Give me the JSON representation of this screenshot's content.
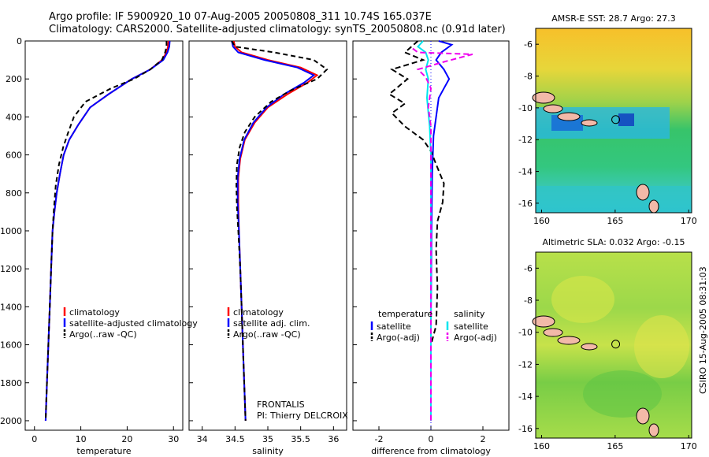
{
  "header": {
    "line1": "Argo profile: IF 5900920_10 07-Aug-2005 20050808_311 10.74S 165.037E",
    "line2": "Climatology: CARS2000. Satellite-adjusted climatology: synTS_20050808.nc (0.91d later)"
  },
  "side_label": "CSIRO 15-Aug-2005 08:31:03",
  "colors": {
    "climatology": "#ff0000",
    "satellite": "#0000ff",
    "argo": "#000000",
    "cyan": "#00e5ee",
    "magenta": "#ee00ee"
  },
  "chart_data": [
    {
      "type": "line",
      "id": "temperature",
      "xlabel": "temperature",
      "xlim": [
        -2,
        32
      ],
      "xticks": [
        0,
        10,
        20,
        30
      ],
      "ylim": [
        2050,
        0
      ],
      "yticks": [
        0,
        200,
        400,
        600,
        800,
        1000,
        1200,
        1400,
        1600,
        1800,
        2000
      ],
      "legend": [
        "climatology",
        "satellite-adjusted climatology",
        "Argo(..raw -QC)"
      ],
      "series": [
        {
          "name": "climatology",
          "color": "red",
          "dash": "",
          "points": [
            [
              28.9,
              0
            ],
            [
              28.8,
              30
            ],
            [
              28.5,
              60
            ],
            [
              27.5,
              100
            ],
            [
              25,
              150
            ],
            [
              21,
              200
            ],
            [
              16,
              280
            ],
            [
              12,
              350
            ],
            [
              9.5,
              440
            ],
            [
              7.5,
              520
            ],
            [
              6.3,
              600
            ],
            [
              5.5,
              700
            ],
            [
              4.8,
              800
            ],
            [
              4.3,
              900
            ],
            [
              3.9,
              1000
            ],
            [
              3.6,
              1200
            ],
            [
              3.3,
              1400
            ],
            [
              3,
              1600
            ],
            [
              2.7,
              1800
            ],
            [
              2.4,
              2000
            ]
          ]
        },
        {
          "name": "satellite-adjusted climatology",
          "color": "blue",
          "dash": "",
          "points": [
            [
              29.2,
              0
            ],
            [
              29.1,
              30
            ],
            [
              28.7,
              60
            ],
            [
              27.8,
              100
            ],
            [
              25,
              150
            ],
            [
              21,
              200
            ],
            [
              16,
              280
            ],
            [
              12,
              350
            ],
            [
              9.5,
              440
            ],
            [
              7.5,
              520
            ],
            [
              6.3,
              600
            ],
            [
              5.5,
              700
            ],
            [
              4.8,
              800
            ],
            [
              4.3,
              900
            ],
            [
              3.9,
              1000
            ],
            [
              3.6,
              1200
            ],
            [
              3.3,
              1400
            ],
            [
              3,
              1600
            ],
            [
              2.7,
              1800
            ],
            [
              2.4,
              2000
            ]
          ]
        },
        {
          "name": "Argo(..raw -QC)",
          "color": "black",
          "dash": "6,4",
          "points": [
            [
              28.5,
              0
            ],
            [
              28.5,
              30
            ],
            [
              28.2,
              60
            ],
            [
              27.5,
              100
            ],
            [
              25,
              150
            ],
            [
              21.5,
              200
            ],
            [
              16.5,
              250
            ],
            [
              11,
              320
            ],
            [
              8.5,
              400
            ],
            [
              7.3,
              480
            ],
            [
              6.2,
              560
            ],
            [
              5.3,
              650
            ],
            [
              4.6,
              760
            ],
            [
              4.2,
              880
            ],
            [
              3.9,
              1000
            ],
            [
              3.6,
              1200
            ],
            [
              3.3,
              1400
            ],
            [
              3,
              1600
            ],
            [
              2.7,
              1800
            ],
            [
              2.4,
              2000
            ]
          ]
        }
      ]
    },
    {
      "type": "line",
      "id": "salinity",
      "xlabel": "salinity",
      "xlim": [
        33.8,
        36.2
      ],
      "xticks": [
        34,
        34.5,
        35,
        35.5,
        36
      ],
      "ylim": [
        2050,
        0
      ],
      "yticks": [
        0,
        200,
        400,
        600,
        800,
        1000,
        1200,
        1400,
        1600,
        1800,
        2000
      ],
      "legend": [
        "climatology",
        "satellite adj. clim.",
        "Argo(..raw -QC)"
      ],
      "annotation": [
        "FRONTALIS",
        "PI: Thierry DELCROIX"
      ],
      "series": [
        {
          "name": "climatology",
          "color": "red",
          "dash": "",
          "points": [
            [
              34.48,
              0
            ],
            [
              34.5,
              30
            ],
            [
              34.6,
              60
            ],
            [
              35,
              100
            ],
            [
              35.5,
              140
            ],
            [
              35.75,
              180
            ],
            [
              35.6,
              220
            ],
            [
              35.3,
              280
            ],
            [
              35,
              350
            ],
            [
              34.8,
              430
            ],
            [
              34.65,
              520
            ],
            [
              34.58,
              620
            ],
            [
              34.55,
              720
            ],
            [
              34.55,
              850
            ],
            [
              34.56,
              1000
            ],
            [
              34.58,
              1200
            ],
            [
              34.6,
              1400
            ],
            [
              34.62,
              1600
            ],
            [
              34.64,
              1800
            ],
            [
              34.66,
              2000
            ]
          ]
        },
        {
          "name": "satellite adj. clim.",
          "color": "blue",
          "dash": "",
          "points": [
            [
              34.45,
              0
            ],
            [
              34.47,
              30
            ],
            [
              34.55,
              60
            ],
            [
              34.95,
              100
            ],
            [
              35.45,
              140
            ],
            [
              35.7,
              180
            ],
            [
              35.55,
              220
            ],
            [
              35.25,
              280
            ],
            [
              34.98,
              350
            ],
            [
              34.78,
              430
            ],
            [
              34.64,
              520
            ],
            [
              34.57,
              620
            ],
            [
              34.54,
              720
            ],
            [
              34.54,
              850
            ],
            [
              34.56,
              1000
            ],
            [
              34.58,
              1200
            ],
            [
              34.6,
              1400
            ],
            [
              34.62,
              1600
            ],
            [
              34.64,
              1800
            ],
            [
              34.66,
              2000
            ]
          ]
        },
        {
          "name": "Argo(..raw -QC)",
          "color": "black",
          "dash": "6,4",
          "points": [
            [
              34.45,
              0
            ],
            [
              34.5,
              30
            ],
            [
              35.1,
              60
            ],
            [
              35.7,
              100
            ],
            [
              35.9,
              150
            ],
            [
              35.75,
              200
            ],
            [
              35.35,
              260
            ],
            [
              35.05,
              320
            ],
            [
              34.8,
              400
            ],
            [
              34.65,
              480
            ],
            [
              34.57,
              560
            ],
            [
              34.53,
              650
            ],
            [
              34.52,
              760
            ],
            [
              34.53,
              880
            ],
            [
              34.55,
              1000
            ],
            [
              34.58,
              1200
            ],
            [
              34.6,
              1400
            ],
            [
              34.62,
              1600
            ],
            [
              34.64,
              1800
            ],
            [
              34.66,
              2000
            ]
          ]
        }
      ]
    },
    {
      "type": "line",
      "id": "difference",
      "xlabel": "difference from climatology",
      "xlim": [
        -3,
        3
      ],
      "xticks": [
        -2,
        0,
        2
      ],
      "ylim": [
        2050,
        0
      ],
      "yticks": [
        0,
        200,
        400,
        600,
        800,
        1000,
        1200,
        1400,
        1600,
        1800,
        2000
      ],
      "legend_left_title": "temperature",
      "legend_right_title": "salinity",
      "legend_left": [
        "satellite",
        "Argo(-adj)"
      ],
      "legend_right": [
        "satellite",
        "Argo(-adj)"
      ],
      "series": [
        {
          "name": "temperature satellite",
          "color": "blue",
          "dash": "",
          "points": [
            [
              0.3,
              0
            ],
            [
              0.8,
              20
            ],
            [
              0.4,
              60
            ],
            [
              0.2,
              100
            ],
            [
              0.5,
              150
            ],
            [
              0.7,
              200
            ],
            [
              0.5,
              250
            ],
            [
              0.3,
              300
            ],
            [
              0.2,
              400
            ],
            [
              0.1,
              500
            ],
            [
              0.05,
              700
            ],
            [
              0.02,
              1000
            ],
            [
              0,
              1500
            ],
            [
              0,
              2000
            ]
          ]
        },
        {
          "name": "temperature Argo(-adj)",
          "color": "black",
          "dash": "7,4",
          "points": [
            [
              -0.5,
              0
            ],
            [
              -1,
              60
            ],
            [
              -0.3,
              100
            ],
            [
              -1.5,
              150
            ],
            [
              -0.9,
              200
            ],
            [
              -1.6,
              280
            ],
            [
              -1,
              330
            ],
            [
              -1.5,
              380
            ],
            [
              -1,
              450
            ],
            [
              -0.3,
              520
            ],
            [
              0,
              580
            ],
            [
              0.2,
              650
            ],
            [
              0.5,
              750
            ],
            [
              0.45,
              850
            ],
            [
              0.25,
              950
            ],
            [
              0.2,
              1100
            ],
            [
              0.25,
              1300
            ],
            [
              0.2,
              1500
            ],
            [
              0,
              1600
            ],
            [
              0,
              2000
            ]
          ]
        },
        {
          "name": "salinity satellite",
          "color": "cyan",
          "dash": "",
          "points": [
            [
              -0.3,
              0
            ],
            [
              -0.5,
              30
            ],
            [
              -0.2,
              60
            ],
            [
              -0.1,
              100
            ],
            [
              -0.2,
              150
            ],
            [
              -0.1,
              200
            ],
            [
              -0.15,
              300
            ],
            [
              -0.05,
              450
            ],
            [
              0,
              600
            ],
            [
              0,
              1000
            ],
            [
              0,
              1500
            ],
            [
              0,
              2000
            ]
          ]
        },
        {
          "name": "salinity Argo(-adj)",
          "color": "magenta",
          "dash": "7,4",
          "points": [
            [
              -0.7,
              40
            ],
            [
              -0.5,
              60
            ],
            [
              1.6,
              70
            ],
            [
              0.5,
              110
            ],
            [
              -0.5,
              150
            ],
            [
              -0.2,
              190
            ],
            [
              0,
              250
            ],
            [
              -0.1,
              350
            ],
            [
              0,
              450
            ],
            [
              0,
              600
            ],
            [
              0,
              800
            ],
            [
              0,
              1000
            ],
            [
              0,
              1500
            ],
            [
              0,
              2000
            ]
          ]
        }
      ]
    }
  ],
  "maps": [
    {
      "id": "sst",
      "title": "AMSR-E SST: 28.7 Argo: 27.3",
      "xticks": [
        "160",
        "165",
        "170"
      ],
      "yticks": [
        "-6",
        "-8",
        "-10",
        "-12",
        "-14",
        "-16"
      ]
    },
    {
      "id": "sla",
      "title": "Altimetric SLA: 0.032 Argo: -0.15",
      "xticks": [
        "160",
        "165",
        "170"
      ],
      "yticks": [
        "-6",
        "-8",
        "-10",
        "-12",
        "-14",
        "-16"
      ]
    }
  ]
}
